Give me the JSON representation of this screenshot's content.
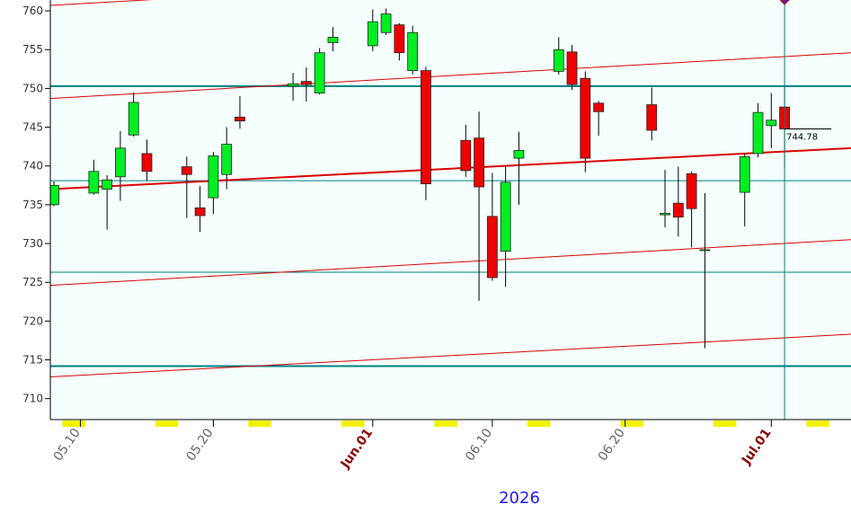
{
  "chart_data": {
    "type": "candlestick",
    "x": [
      "05.08",
      "05.11",
      "05.12",
      "05.13",
      "05.14",
      "05.15",
      "05.18",
      "05.19",
      "05.20",
      "05.21",
      "05.22",
      "05.26",
      "05.27",
      "05.28",
      "05.29",
      "06.01",
      "06.02",
      "06.03",
      "06.04",
      "06.05",
      "06.08",
      "06.09",
      "06.10",
      "06.11",
      "06.12",
      "06.15",
      "06.16",
      "06.17",
      "06.18",
      "06.22",
      "06.23",
      "06.24",
      "06.25",
      "06.26",
      "06.29",
      "06.30",
      "07.01",
      "07.02"
    ],
    "open": [
      735,
      736.5,
      737,
      738.6,
      744,
      741.6,
      739.9,
      734.6,
      735.9,
      738.9,
      746.3,
      750.3,
      750.9,
      749.4,
      755.9,
      755.5,
      757.2,
      758.2,
      752.3,
      752.3,
      743.3,
      743.6,
      733.5,
      729,
      741,
      752.2,
      754.7,
      751.3,
      748.1,
      747.9,
      733.7,
      735.2,
      739,
      729.1,
      736.6,
      741.6,
      745.2,
      747.6
    ],
    "high": [
      738,
      740.8,
      738.8,
      744.5,
      749.5,
      743.4,
      741.2,
      737.4,
      741.8,
      745,
      749,
      752,
      752.7,
      755.2,
      757.9,
      760.2,
      760.3,
      758.4,
      758.1,
      752.8,
      745.3,
      747,
      739.1,
      740,
      744.4,
      756.6,
      755.6,
      752.2,
      748.4,
      750.1,
      739.5,
      739.9,
      739.3,
      736.5,
      741.6,
      748.1,
      749.4,
      750.4
    ],
    "low": [
      734.8,
      736.3,
      731.8,
      735.5,
      743.8,
      738.1,
      733.3,
      731.5,
      733.8,
      737,
      744.8,
      748.4,
      748.3,
      749.2,
      754.8,
      754.8,
      756.9,
      753.6,
      751.8,
      735.6,
      738.6,
      722.6,
      725.2,
      724.4,
      735,
      751.8,
      749.8,
      739.2,
      743.9,
      743.3,
      732.1,
      730.9,
      729.5,
      716.5,
      732.2,
      741.1,
      742.3,
      739.8
    ],
    "close": [
      737.5,
      739.3,
      738.2,
      742.3,
      748.2,
      739.3,
      738.9,
      733.6,
      741.3,
      742.8,
      745.8,
      750.6,
      750.5,
      754.6,
      756.6,
      758.6,
      759.6,
      754.6,
      757.2,
      737.7,
      739.4,
      737.3,
      725.6,
      737.9,
      742,
      755,
      750.5,
      741,
      747,
      744.6,
      733.9,
      733.4,
      734.5,
      729.2,
      741.2,
      746.9,
      745.9,
      744.78
    ],
    "up_color": "#00ee22",
    "down_color": "#ee0000",
    "xlim": [
      "05.08",
      "07.07"
    ],
    "xticks": [
      {
        "value": "05.10",
        "label": "05.10"
      },
      {
        "value": "05.20",
        "label": "05.20"
      },
      {
        "value": "06.01",
        "label": "Jun.01"
      },
      {
        "value": "06.10",
        "label": "06.10"
      },
      {
        "value": "06.20",
        "label": "06.20"
      },
      {
        "value": "07.01",
        "label": "Jul.01"
      }
    ],
    "year_label": "2026",
    "ylim": [
      707.3,
      761.4
    ],
    "yticks": [
      710,
      715,
      720,
      725,
      730,
      735,
      740,
      745,
      750,
      755,
      760
    ],
    "hlines": [
      750.3,
      738.1,
      726.3,
      714.2
    ],
    "trend_lines": [
      [
        737,
        742.3
      ],
      [
        748.7,
        754.6
      ],
      [
        724.6,
        730.5
      ],
      [
        712.8,
        718.3
      ],
      [
        760.7,
        766.6
      ]
    ]
  }
}
